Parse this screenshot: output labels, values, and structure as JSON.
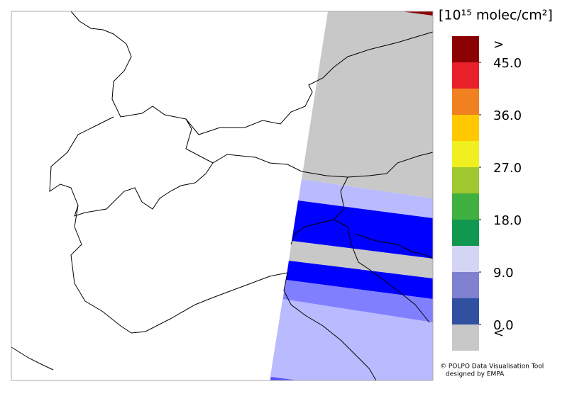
{
  "colorbar": {
    "title": "[10¹⁵ molec/cm²]",
    "colors": [
      "#8b0000",
      "#e8202a",
      "#f08020",
      "#ffc800",
      "#f0f020",
      "#a0c830",
      "#40b040",
      "#109850",
      "#d4d4f4",
      "#8080d0",
      "#3050a0",
      "#c8c8c8"
    ],
    "ticks": [
      {
        "value": 45,
        "label": "45.0"
      },
      {
        "value": 36,
        "label": "36.0"
      },
      {
        "value": 27,
        "label": "27.0"
      },
      {
        "value": 18,
        "label": "18.0"
      },
      {
        "value": 9,
        "label": "9.0"
      },
      {
        "value": 0,
        "label": "0.0"
      }
    ],
    "over_label": ">",
    "under_label": "<"
  },
  "footer": {
    "line1": "© POLPO Data Visualisation Tool",
    "line2": "designed by EMPA"
  }
}
